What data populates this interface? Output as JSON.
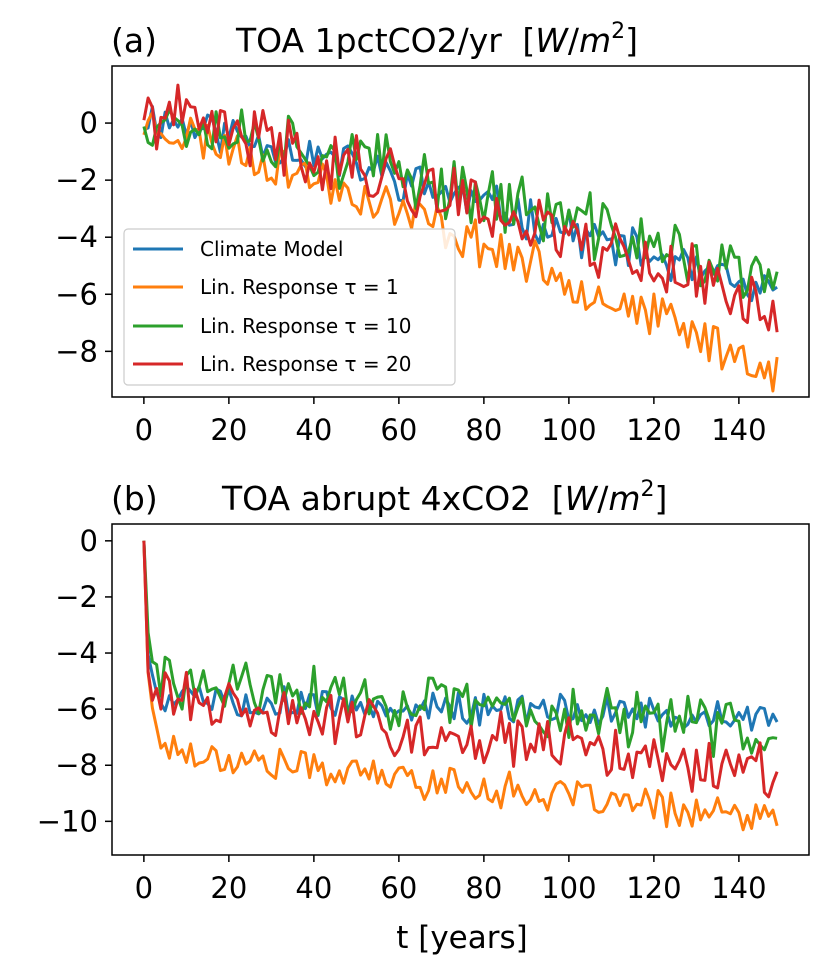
{
  "xlabel": "t [years]",
  "chart_data": [
    {
      "type": "line",
      "panel_letter": "(a)",
      "title": "TOA 1pctCO2/yr",
      "title_units": {
        "open": "[",
        "W": "W",
        "slash": "/",
        "m": "m",
        "exp": "2",
        "close": "]"
      },
      "xlabel": "",
      "ylabel": "",
      "xlim": [
        -7.5,
        156.5
      ],
      "ylim": [
        -9.6,
        2.0
      ],
      "xticks": [
        0,
        20,
        40,
        60,
        80,
        100,
        120,
        140
      ],
      "xtick_labels": [
        "0",
        "20",
        "40",
        "60",
        "80",
        "100",
        "120",
        "140"
      ],
      "yticks": [
        0,
        -2,
        -4,
        -6,
        -8
      ],
      "ytick_labels": [
        "0",
        "−2",
        "−4",
        "−6",
        "−8"
      ],
      "legend": {
        "position": "lower-left",
        "entries": [
          {
            "label": "Climate Model",
            "color": "#1f77b4"
          },
          {
            "label": "Lin. Response τ = 1",
            "color": "#ff7f0e"
          },
          {
            "label": "Lin. Response τ = 10",
            "color": "#2ca02c"
          },
          {
            "label": "Lin. Response τ = 20",
            "color": "#d62728"
          }
        ]
      },
      "series": [
        {
          "name": "Climate Model",
          "color": "#1f77b4",
          "start": 0.2,
          "end": -6.2,
          "curve": 1.2,
          "noise": 0.65,
          "seed": 11
        },
        {
          "name": "Lin. Response τ = 1",
          "color": "#ff7f0e",
          "start": 0.0,
          "end": -8.7,
          "curve": 1.15,
          "noise": 0.7,
          "seed": 23
        },
        {
          "name": "Lin. Response τ = 10",
          "color": "#2ca02c",
          "start": 0.3,
          "end": -5.7,
          "curve": 1.2,
          "noise": 1.0,
          "seed": 37
        },
        {
          "name": "Lin. Response τ = 20",
          "color": "#d62728",
          "start": 0.3,
          "end": -6.5,
          "curve": 1.2,
          "noise": 1.0,
          "seed": 41
        }
      ]
    },
    {
      "type": "line",
      "panel_letter": "(b)",
      "title": "TOA abrupt 4xCO2",
      "title_units": {
        "open": "[",
        "W": "W",
        "slash": "/",
        "m": "m",
        "exp": "2",
        "close": "]"
      },
      "xlabel": "t [years]",
      "ylabel": "",
      "xlim": [
        -7.5,
        156.5
      ],
      "ylim": [
        -11.2,
        0.6
      ],
      "xticks": [
        0,
        20,
        40,
        60,
        80,
        100,
        120,
        140
      ],
      "xtick_labels": [
        "0",
        "20",
        "40",
        "60",
        "80",
        "100",
        "120",
        "140"
      ],
      "yticks": [
        0,
        -2,
        -4,
        -6,
        -8,
        -10
      ],
      "ytick_labels": [
        "0",
        "−2",
        "−4",
        "−6",
        "−8",
        "−10"
      ],
      "series": [
        {
          "name": "Climate Model",
          "color": "#1f77b4",
          "jump_to": -4.8,
          "plateau": -5.6,
          "end": -6.3,
          "noise": 0.5,
          "seed": 5
        },
        {
          "name": "Lin. Response τ = 1",
          "color": "#ff7f0e",
          "jump_to": -5.0,
          "plateau": -7.4,
          "end": -10.0,
          "noise": 0.55,
          "seed": 17
        },
        {
          "name": "Lin. Response τ = 10",
          "color": "#2ca02c",
          "jump_to": -4.8,
          "plateau": -5.0,
          "end": -6.8,
          "noise": 0.9,
          "seed": 29
        },
        {
          "name": "Lin. Response τ = 20",
          "color": "#d62728",
          "jump_to": -5.0,
          "plateau": -5.6,
          "end": -8.3,
          "noise": 0.9,
          "seed": 31
        }
      ]
    }
  ]
}
